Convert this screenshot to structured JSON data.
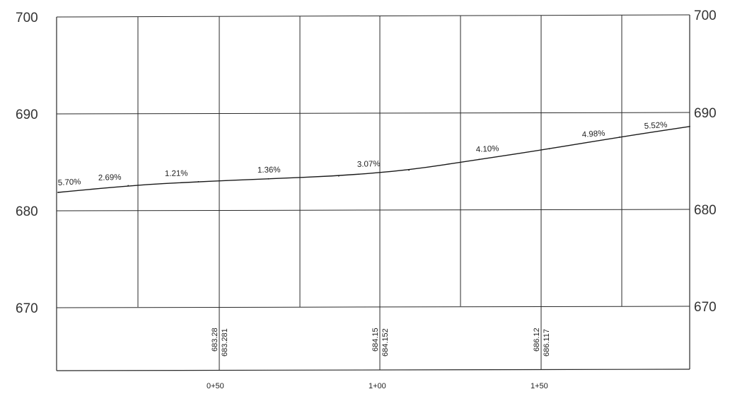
{
  "elevation_axis": {
    "labels": [
      "700",
      "690",
      "680",
      "670"
    ]
  },
  "grades": [
    "5.70%",
    "2.69%",
    "1.21%",
    "1.36%",
    "3.07%",
    "4.10%",
    "4.98%",
    "5.52%"
  ],
  "stations": [
    "0+50",
    "1+00",
    "1+50"
  ],
  "elevation_table": [
    {
      "station": "0+50",
      "existing": "683.28",
      "proposed": "683.281"
    },
    {
      "station": "1+00",
      "existing": "684.15",
      "proposed": "684.152"
    },
    {
      "station": "1+50",
      "existing": "686.12",
      "proposed": "686.117"
    }
  ],
  "chart_data": {
    "type": "line",
    "y_axis_labels": [
      700,
      690,
      680,
      670
    ],
    "ylim": [
      670,
      700
    ],
    "grid": true,
    "x_tick_labels": [
      "0+50",
      "1+00",
      "1+50"
    ],
    "series": [
      {
        "values": [
          681.9,
          682.6,
          683.0,
          683.3,
          683.6,
          684.2,
          685.3,
          686.4,
          687.6,
          688.7
        ]
      }
    ],
    "grades": [
      "5.70%",
      "2.69%",
      "1.21%",
      "1.36%",
      "3.07%",
      "4.10%",
      "4.98%",
      "5.52%"
    ]
  }
}
